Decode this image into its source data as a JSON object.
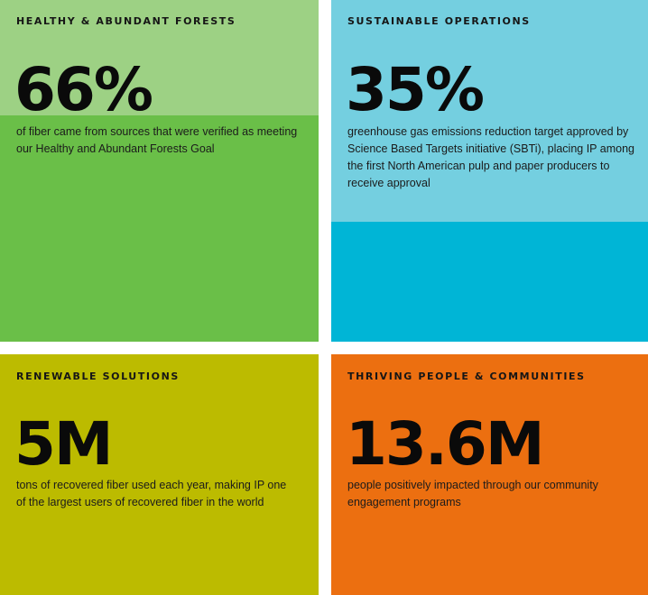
{
  "cards": [
    {
      "label": "HEALTHY & ABUNDANT FORESTS",
      "stat": "66%",
      "description": "of fiber came from sources that were verified as meeting our Healthy and Abundant Forests Goal",
      "color": "#6abf48",
      "accent": "#9dd184"
    },
    {
      "label": "SUSTAINABLE OPERATIONS",
      "stat": "35%",
      "description": "greenhouse gas emissions reduction target approved by Science Based Targets initiative (SBTi), placing IP among the first North American pulp and paper producers to receive approval",
      "color": "#00b5d6",
      "accent": "#74cfe0"
    },
    {
      "label": "RENEWABLE SOLUTIONS",
      "stat": "5M",
      "description": "tons of recovered fiber used each year, making IP one of the largest users of recovered fiber in the world",
      "color": "#bcbb00"
    },
    {
      "label": "THRIVING PEOPLE & COMMUNITIES",
      "stat": "13.6M",
      "description": "people positively impacted through our community engagement programs",
      "color": "#ec6f10"
    }
  ]
}
